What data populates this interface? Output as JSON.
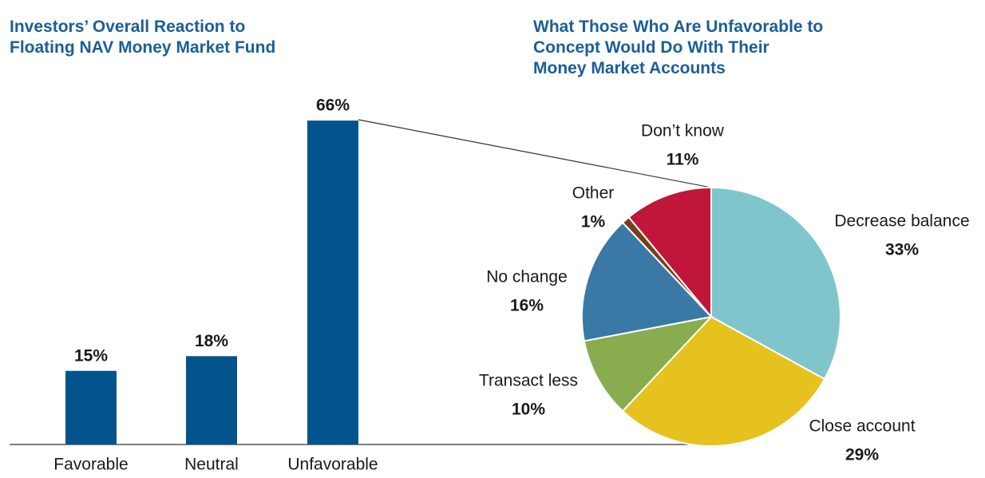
{
  "chart_data": [
    {
      "type": "bar",
      "title": "Investors’ Overall Reaction to Floating NAV Money Market Fund Concept",
      "categories": [
        "Favorable",
        "Neutral",
        "Unfavorable"
      ],
      "values": [
        15,
        18,
        66
      ],
      "value_labels": [
        "15%",
        "18%",
        "66%"
      ],
      "color": "#03548c"
    },
    {
      "type": "pie",
      "title": "What Those Who Are Unfavorable to Concept Would Do With Their Money Market Accounts",
      "categories": [
        "Decrease balance",
        "Close account",
        "Transact less",
        "No change",
        "Other",
        "Don’t know"
      ],
      "values": [
        33,
        29,
        10,
        16,
        1,
        11
      ],
      "value_labels": [
        "33%",
        "29%",
        "10%",
        "16%",
        "1%",
        "11%"
      ],
      "colors": [
        "#7fc6cc",
        "#e5c21e",
        "#89ad4e",
        "#3a79a6",
        "#7a3d1c",
        "#c0163a"
      ]
    }
  ]
}
